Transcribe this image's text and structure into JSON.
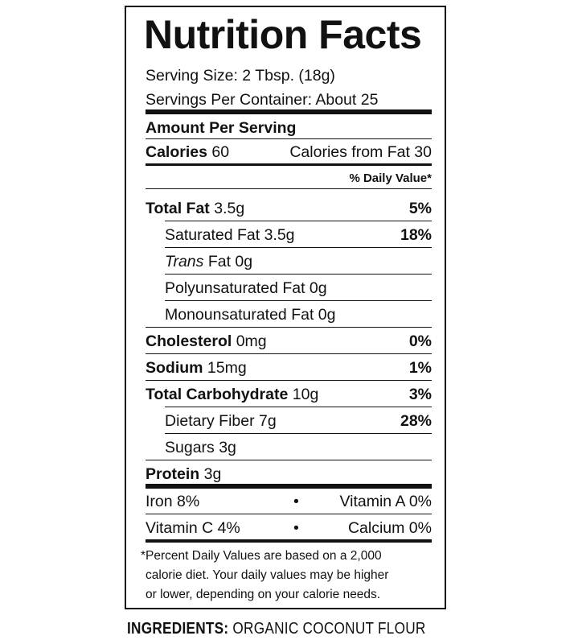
{
  "title": "Nutrition Facts",
  "serving_size": "Serving Size: 2 Tbsp. (18g)",
  "servings_per_container": "Servings Per Container: About 25",
  "amount_per_serving": "Amount Per Serving",
  "calories": {
    "label": "Calories",
    "value": "60",
    "from_fat": "Calories from Fat 30"
  },
  "daily_value_header": "% Daily Value*",
  "nutrients": [
    {
      "label": "Total Fat",
      "value": "3.5g",
      "dv": "5%"
    },
    {
      "label": "Saturated Fat 3.5g",
      "value": "",
      "dv": "18%"
    },
    {
      "label": "Trans",
      "value": " Fat 0g",
      "dv": ""
    },
    {
      "label": "Polyunsaturated Fat 0g",
      "value": "",
      "dv": ""
    },
    {
      "label": "Monounsaturated Fat 0g",
      "value": "",
      "dv": ""
    },
    {
      "label": "Cholesterol",
      "value": "0mg",
      "dv": "0%"
    },
    {
      "label": "Sodium",
      "value": "15mg",
      "dv": "1%"
    },
    {
      "label": "Total Carbohydrate",
      "value": "10g",
      "dv": "3%"
    },
    {
      "label": "Dietary Fiber 7g",
      "value": "",
      "dv": "28%"
    },
    {
      "label": "Sugars 3g",
      "value": "",
      "dv": ""
    },
    {
      "label": "Protein",
      "value": "3g",
      "dv": ""
    }
  ],
  "vitamins": [
    {
      "left": "Iron 8%",
      "bullet": "•",
      "right": "Vitamin A 0%"
    },
    {
      "left": "Vitamin C 4%",
      "bullet": "•",
      "right": "Calcium 0%"
    }
  ],
  "footnote": [
    "*Percent Daily Values are based on a 2,000",
    "calorie diet. Your daily values may be higher",
    "or lower, depending on your calorie needs."
  ],
  "ingredients": {
    "label": "INGREDIENTS:",
    "value": " ORGANIC COCONUT FLOUR"
  }
}
